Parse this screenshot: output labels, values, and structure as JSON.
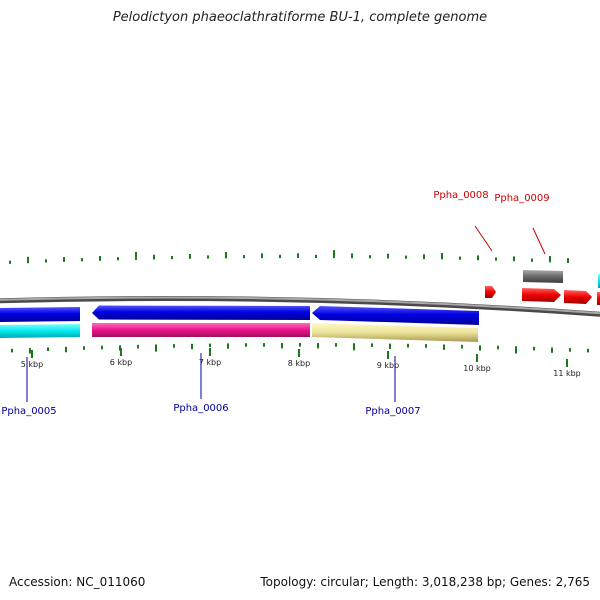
{
  "title": "Pelodictyon phaeoclathratiforme BU-1, complete genome",
  "footer": {
    "accession": "Accession: NC_011060",
    "summary": "Topology: circular; Length: 3,018,238 bp; Genes: 2,765"
  },
  "scale_labels": [
    "5 kbp",
    "6 kbp",
    "7 kbp",
    "8 kbp",
    "9 kbp",
    "10 kbp",
    "11 kbp"
  ],
  "genes_below": [
    "Ppha_0005",
    "Ppha_0006",
    "Ppha_0007"
  ],
  "genes_above": [
    "Ppha_0008",
    "Ppha_0009"
  ],
  "colors": {
    "forward_label": "#cc0000",
    "reverse_label": "#000099",
    "backbone": "#808080",
    "tick": "#1a7a1a",
    "blue": "#0000dd",
    "cyan": "#00e8ee",
    "magenta": "#e8168a",
    "khaki": "#ece49a",
    "red": "#ee0000",
    "gray": "#666666"
  }
}
